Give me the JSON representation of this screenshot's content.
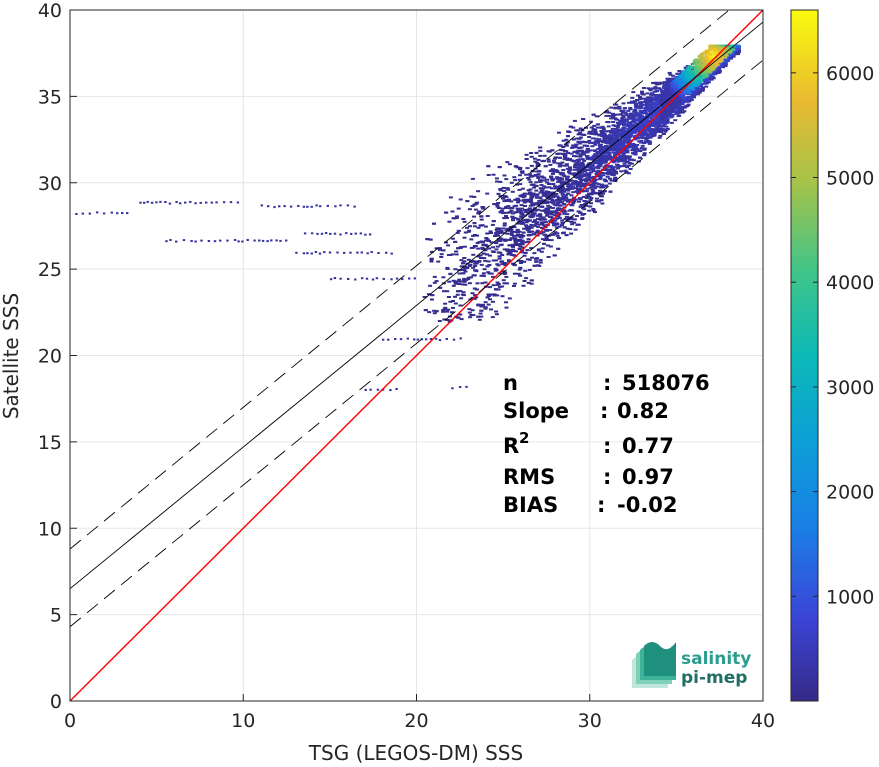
{
  "chart_data": {
    "type": "scatter",
    "subtype": "density-scatter",
    "title": "",
    "xlabel": "TSG (LEGOS-DM) SSS",
    "ylabel": "Satellite SSS",
    "xlim": [
      0,
      40
    ],
    "ylim": [
      0,
      40
    ],
    "xticks": [
      "0",
      "10",
      "20",
      "30",
      "40"
    ],
    "yticks": [
      "0",
      "5",
      "10",
      "15",
      "20",
      "25",
      "30",
      "35",
      "40"
    ],
    "grid": true,
    "colorbar": {
      "ticks": [
        "1000",
        "2000",
        "3000",
        "4000",
        "5000",
        "6000"
      ],
      "min": 0,
      "max": 6600,
      "colormap": "parula"
    },
    "lines": [
      {
        "kind": "identity",
        "color": "#ff0000",
        "slope": 1.0,
        "intercept": 0.0
      },
      {
        "kind": "fit",
        "color": "#000000",
        "slope": 0.82,
        "intercept": 6.5
      },
      {
        "kind": "fit-upper",
        "color": "#000000",
        "dashed": true,
        "slope": 0.82,
        "intercept": 8.8
      },
      {
        "kind": "fit-lower",
        "color": "#000000",
        "dashed": true,
        "slope": 0.82,
        "intercept": 4.3
      }
    ],
    "density_points": [
      {
        "x": 37,
        "y": 37.5,
        "count": 6500
      },
      {
        "x": 36,
        "y": 36.3,
        "count": 2500
      },
      {
        "x": 35,
        "y": 35.2,
        "count": 1200
      },
      {
        "x": 34,
        "y": 34.5,
        "count": 800
      },
      {
        "x": 33,
        "y": 33.5,
        "count": 500
      },
      {
        "x": 32,
        "y": 32.5,
        "count": 300
      },
      {
        "x": 30,
        "y": 30.5,
        "count": 150
      },
      {
        "x": 27,
        "y": 28.5,
        "count": 60
      },
      {
        "x": 25,
        "y": 27.0,
        "count": 30
      },
      {
        "x": 20,
        "y": 27.5,
        "count": 10
      },
      {
        "x": 15,
        "y": 26.0,
        "count": 5
      },
      {
        "x": 5,
        "y": 28.8,
        "count": 2
      },
      {
        "x": 0.5,
        "y": 28.3,
        "count": 3
      }
    ],
    "stats": [
      {
        "label": "n",
        "sep": ":",
        "value": "518076"
      },
      {
        "label": "Slope",
        "sep": ":",
        "value": "0.82"
      },
      {
        "label": "R",
        "sup": "2",
        "sep": ":",
        "value": "0.77"
      },
      {
        "label": "RMS",
        "sep": ":",
        "value": "0.97"
      },
      {
        "label": "BIAS",
        "sep": ":",
        "value": "-0.02"
      }
    ]
  },
  "logo": {
    "line1": "salinity",
    "line2": "pi-mep",
    "color": "#2a9d8f"
  }
}
